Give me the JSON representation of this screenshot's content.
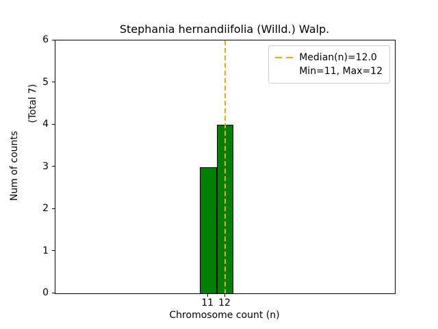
{
  "chart_data": {
    "type": "bar",
    "title": "Stephania hernandiifolia (Willd.) Walp.",
    "xlabel": "Chromosome count (n)",
    "ylabel": "Num of counts",
    "total_label": "(Total 7)",
    "total_counts": 7,
    "categories": [
      11,
      12
    ],
    "values": [
      3,
      4
    ],
    "xticks": [
      11,
      12
    ],
    "yticks": [
      0,
      1,
      2,
      3,
      4,
      5,
      6
    ],
    "xlim": [
      2,
      22
    ],
    "ylim": [
      0,
      6
    ],
    "bar_color": "#008000",
    "bar_edge_color": "#000000",
    "median_line": {
      "x": 12.0,
      "label": "Median(n)=12.0",
      "color": "#ffa500",
      "style": "dashed"
    },
    "annotations": [
      "Min=11, Max=12"
    ],
    "legend_position": "upper right",
    "grid": false
  }
}
